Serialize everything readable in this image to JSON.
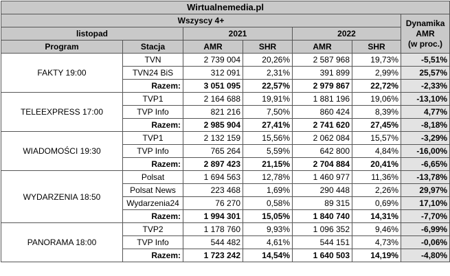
{
  "title": "Wirtualnemedia.pl",
  "audience": "Wszyscy 4+",
  "period": "listopad",
  "years": [
    "2021",
    "2022"
  ],
  "dynamics_header": [
    "Dynamika",
    "AMR",
    "(w proc.)"
  ],
  "col_headers": {
    "program": "Program",
    "station": "Stacja",
    "amr": "AMR",
    "shr": "SHR"
  },
  "groups": [
    {
      "program": "FAKTY 19:00",
      "rows": [
        {
          "station": "TVN",
          "amr2021": "2 739 004",
          "shr2021": "20,26%",
          "amr2022": "2 587 968",
          "shr2022": "19,73%",
          "dyn": "-5,51%",
          "total": false
        },
        {
          "station": "TVN24 BiS",
          "amr2021": "312 091",
          "shr2021": "2,31%",
          "amr2022": "391 899",
          "shr2022": "2,99%",
          "dyn": "25,57%",
          "total": false
        },
        {
          "station": "Razem:",
          "amr2021": "3 051 095",
          "shr2021": "22,57%",
          "amr2022": "2 979 867",
          "shr2022": "22,72%",
          "dyn": "-2,33%",
          "total": true
        }
      ]
    },
    {
      "program": "TELEEXPRESS 17:00",
      "rows": [
        {
          "station": "TVP1",
          "amr2021": "2 164 688",
          "shr2021": "19,91%",
          "amr2022": "1 881 196",
          "shr2022": "19,06%",
          "dyn": "-13,10%",
          "total": false
        },
        {
          "station": "TVP Info",
          "amr2021": "821 216",
          "shr2021": "7,50%",
          "amr2022": "860 424",
          "shr2022": "8,39%",
          "dyn": "4,77%",
          "total": false
        },
        {
          "station": "Razem:",
          "amr2021": "2 985 904",
          "shr2021": "27,41%",
          "amr2022": "2 741 620",
          "shr2022": "27,45%",
          "dyn": "-8,18%",
          "total": true
        }
      ]
    },
    {
      "program": "WIADOMOŚCI 19:30",
      "rows": [
        {
          "station": "TVP1",
          "amr2021": "2 132 159",
          "shr2021": "15,56%",
          "amr2022": "2 062 084",
          "shr2022": "15,57%",
          "dyn": "-3,29%",
          "total": false
        },
        {
          "station": "TVP Info",
          "amr2021": "765 264",
          "shr2021": "5,59%",
          "amr2022": "642 800",
          "shr2022": "4,84%",
          "dyn": "-16,00%",
          "total": false
        },
        {
          "station": "Razem:",
          "amr2021": "2 897 423",
          "shr2021": "21,15%",
          "amr2022": "2 704 884",
          "shr2022": "20,41%",
          "dyn": "-6,65%",
          "total": true
        }
      ]
    },
    {
      "program": "WYDARZENIA 18:50",
      "rows": [
        {
          "station": "Polsat",
          "amr2021": "1 694 563",
          "shr2021": "12,78%",
          "amr2022": "1 460 977",
          "shr2022": "11,36%",
          "dyn": "-13,78%",
          "total": false
        },
        {
          "station": "Polsat News",
          "amr2021": "223 468",
          "shr2021": "1,69%",
          "amr2022": "290 448",
          "shr2022": "2,26%",
          "dyn": "29,97%",
          "total": false
        },
        {
          "station": "Wydarzenia24",
          "amr2021": "76 270",
          "shr2021": "0,58%",
          "amr2022": "89 315",
          "shr2022": "0,69%",
          "dyn": "17,10%",
          "total": false
        },
        {
          "station": "Razem:",
          "amr2021": "1 994 301",
          "shr2021": "15,05%",
          "amr2022": "1 840 740",
          "shr2022": "14,31%",
          "dyn": "-7,70%",
          "total": true
        }
      ]
    },
    {
      "program": "PANORAMA 18:00",
      "rows": [
        {
          "station": "TVP2",
          "amr2021": "1 178 760",
          "shr2021": "9,93%",
          "amr2022": "1 096 352",
          "shr2022": "9,46%",
          "dyn": "-6,99%",
          "total": false
        },
        {
          "station": "TVP Info",
          "amr2021": "544 482",
          "shr2021": "4,61%",
          "amr2022": "544 151",
          "shr2022": "4,73%",
          "dyn": "-0,06%",
          "total": false
        },
        {
          "station": "Razem:",
          "amr2021": "1 723 242",
          "shr2021": "14,54%",
          "amr2022": "1 640 503",
          "shr2022": "14,19%",
          "dyn": "-4,80%",
          "total": true
        }
      ]
    }
  ]
}
